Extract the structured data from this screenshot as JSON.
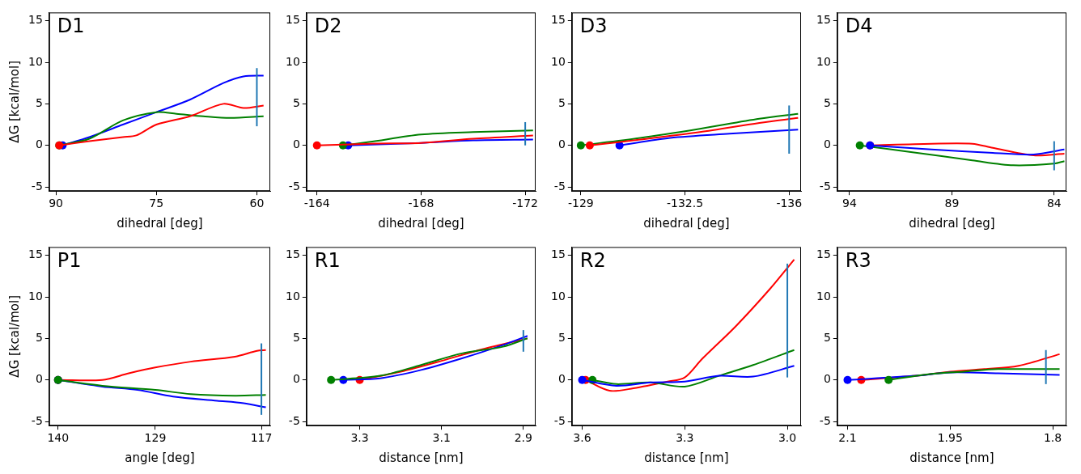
{
  "chart_data": [
    {
      "type": "line",
      "title": "D1",
      "x_label": "dihedral [deg]",
      "y_label": "ΔG [kcal/mol]",
      "xlim": [
        91,
        58
      ],
      "xticks": [
        90,
        75,
        60
      ],
      "ylim": [
        -5.5,
        16
      ],
      "yticks": [
        -5,
        0,
        5,
        10,
        15
      ],
      "grid": false,
      "series": [
        {
          "color": "#ff0000",
          "marker": "circle",
          "x": [
            89.5,
            85,
            80,
            78,
            75,
            70,
            65,
            62,
            59
          ],
          "values": [
            0,
            0.5,
            1.0,
            1.2,
            2.5,
            3.5,
            5.0,
            4.5,
            4.8
          ]
        },
        {
          "color": "#008000",
          "marker": "circle",
          "x": [
            89.5,
            85,
            80,
            75,
            72,
            68,
            64,
            59
          ],
          "values": [
            0,
            0.8,
            3.0,
            4.0,
            3.8,
            3.5,
            3.3,
            3.5
          ]
        },
        {
          "color": "#0000ff",
          "marker": "circle",
          "x": [
            89,
            85,
            80,
            75,
            70,
            65,
            62,
            59
          ],
          "values": [
            0,
            1.0,
            2.5,
            4.0,
            5.5,
            7.5,
            8.3,
            8.4
          ]
        }
      ],
      "error_bar": {
        "x": 60,
        "low": 2.3,
        "high": 9.3,
        "color": "#1f77b4"
      }
    },
    {
      "type": "line",
      "title": "D2",
      "x_label": "dihedral [deg]",
      "xlim": [
        -163.6,
        -172.4
      ],
      "xticks": [
        -164,
        -168,
        -172
      ],
      "ylim": [
        -5.5,
        16
      ],
      "yticks": [
        -5,
        0,
        5,
        10,
        15
      ],
      "grid": false,
      "series": [
        {
          "color": "#ff0000",
          "marker": "circle",
          "x": [
            -164,
            -166,
            -168,
            -170,
            -172.3
          ],
          "values": [
            0,
            0.2,
            0.3,
            0.8,
            1.2
          ]
        },
        {
          "color": "#008000",
          "marker": "circle",
          "x": [
            -165,
            -166,
            -168,
            -170,
            -172.3
          ],
          "values": [
            0,
            0.4,
            1.3,
            1.6,
            1.8
          ]
        },
        {
          "color": "#0000ff",
          "marker": "circle",
          "x": [
            -165.2,
            -168,
            -170,
            -172.3
          ],
          "values": [
            0,
            0.3,
            0.6,
            0.7
          ]
        }
      ],
      "error_bar": {
        "x": -172,
        "low": 0,
        "high": 2.8,
        "color": "#1f77b4"
      }
    },
    {
      "type": "line",
      "title": "D3",
      "x_label": "dihedral [deg]",
      "xlim": [
        -128.7,
        -136.4
      ],
      "xticks": [
        -129,
        -132.5,
        -136
      ],
      "ylim": [
        -5.5,
        16
      ],
      "yticks": [
        -5,
        0,
        5,
        10,
        15
      ],
      "grid": false,
      "series": [
        {
          "color": "#ff0000",
          "marker": "circle",
          "x": [
            -129.3,
            -131,
            -133,
            -135,
            -136.3
          ],
          "values": [
            0,
            0.7,
            1.6,
            2.7,
            3.3
          ]
        },
        {
          "color": "#008000",
          "marker": "circle",
          "x": [
            -129,
            -131,
            -133,
            -135,
            -136.3
          ],
          "values": [
            0,
            0.9,
            2.0,
            3.2,
            3.8
          ]
        },
        {
          "color": "#0000ff",
          "marker": "circle",
          "x": [
            -130.3,
            -132,
            -134,
            -136.3
          ],
          "values": [
            0,
            0.9,
            1.4,
            1.9
          ]
        }
      ],
      "error_bar": {
        "x": -136,
        "low": -1,
        "high": 4.8,
        "color": "#1f77b4"
      }
    },
    {
      "type": "line",
      "title": "D4",
      "x_label": "dihedral [deg]",
      "xlim": [
        94.6,
        83.4
      ],
      "xticks": [
        94,
        89,
        84
      ],
      "ylim": [
        -5.5,
        16
      ],
      "yticks": [
        -5,
        0,
        5,
        10,
        15
      ],
      "grid": false,
      "series": [
        {
          "color": "#0000ff",
          "marker": "circle",
          "x": [
            93,
            90,
            87,
            85,
            83.5
          ],
          "values": [
            0,
            -0.5,
            -0.9,
            -1.1,
            -0.5
          ]
        },
        {
          "color": "#008000",
          "marker": "circle",
          "x": [
            93.5,
            91,
            88,
            86,
            84,
            83.5
          ],
          "values": [
            0,
            -0.8,
            -1.8,
            -2.4,
            -2.2,
            -1.9
          ]
        },
        {
          "color": "#ff0000",
          "marker": "circle",
          "x": [
            93,
            90,
            88,
            87,
            85,
            83.5
          ],
          "values": [
            0,
            0.2,
            0.2,
            -0.3,
            -1.2,
            -1.0
          ]
        }
      ],
      "error_bar": {
        "x": 84,
        "low": -3,
        "high": 0.5,
        "color": "#1f77b4"
      }
    },
    {
      "type": "line",
      "title": "P1",
      "x_label": "angle [deg]",
      "y_label": "ΔG [kcal/mol]",
      "xlim": [
        141,
        116
      ],
      "xticks": [
        140,
        129,
        117
      ],
      "ylim": [
        -5.5,
        16
      ],
      "yticks": [
        -5,
        0,
        5,
        10,
        15
      ],
      "grid": false,
      "series": [
        {
          "color": "#008000",
          "marker": "circle",
          "x": [
            140,
            135,
            129,
            125,
            120,
            116.5
          ],
          "values": [
            0,
            -0.7,
            -1.2,
            -1.7,
            -1.9,
            -1.8
          ]
        },
        {
          "color": "#0000ff",
          "marker": "circle",
          "x": [
            140,
            135,
            131,
            127,
            122,
            119,
            116.5
          ],
          "values": [
            0,
            -0.8,
            -1.2,
            -2.0,
            -2.5,
            -2.8,
            -3.3
          ]
        },
        {
          "color": "#ff0000",
          "marker": "circle",
          "x": [
            140,
            135,
            132,
            129,
            125,
            120,
            117.5,
            116.5
          ],
          "values": [
            0,
            0,
            0.8,
            1.5,
            2.2,
            2.8,
            3.5,
            3.6
          ]
        }
      ],
      "error_bar": {
        "x": 117,
        "low": -4.2,
        "high": 4.4,
        "color": "#1f77b4"
      }
    },
    {
      "type": "line",
      "title": "R1",
      "x_label": "distance [nm]",
      "xlim": [
        3.43,
        2.87
      ],
      "xticks": [
        3.3,
        3.1,
        2.9
      ],
      "ylim": [
        -5.5,
        16
      ],
      "yticks": [
        -5,
        0,
        5,
        10,
        15
      ],
      "grid": false,
      "series": [
        {
          "color": "#008000",
          "marker": "circle",
          "x": [
            3.37,
            3.25,
            3.15,
            3.05,
            2.95,
            2.89
          ],
          "values": [
            0,
            0.5,
            1.8,
            3.2,
            4.0,
            5.0
          ]
        },
        {
          "color": "#0000ff",
          "marker": "circle",
          "x": [
            3.34,
            3.25,
            3.15,
            3.05,
            2.95,
            2.89
          ],
          "values": [
            0,
            0.2,
            1.2,
            2.6,
            4.2,
            5.3
          ]
        },
        {
          "color": "#ff0000",
          "marker": "circle",
          "x": [
            3.3,
            3.2,
            3.1,
            3.0,
            2.89
          ],
          "values": [
            0,
            1.0,
            2.3,
            3.7,
            5.0
          ]
        }
      ],
      "error_bar": {
        "x": 2.9,
        "low": 3.4,
        "high": 6,
        "color": "#1f77b4"
      }
    },
    {
      "type": "line",
      "title": "R2",
      "x_label": "distance [nm]",
      "xlim": [
        3.63,
        2.96
      ],
      "xticks": [
        3.6,
        3.3,
        {
          "value": 3,
          "label": "3.0"
        }
      ],
      "ylim": [
        -5.5,
        16
      ],
      "yticks": [
        -5,
        0,
        5,
        10,
        15
      ],
      "grid": false,
      "series": [
        {
          "color": "#0000ff",
          "marker": "circle",
          "x": [
            3.6,
            3.5,
            3.4,
            3.3,
            3.2,
            3.1,
            2.98
          ],
          "values": [
            0,
            -0.7,
            -0.3,
            -0.2,
            0.5,
            0.4,
            1.7
          ]
        },
        {
          "color": "#008000",
          "marker": "circle",
          "x": [
            3.57,
            3.5,
            3.4,
            3.3,
            3.2,
            3.1,
            2.98
          ],
          "values": [
            0,
            -0.5,
            -0.3,
            -0.8,
            0.5,
            1.8,
            3.6
          ]
        },
        {
          "color": "#ff0000",
          "marker": "circle",
          "x": [
            3.59,
            3.52,
            3.45,
            3.35,
            3.3,
            3.25,
            3.15,
            3.05,
            2.98
          ],
          "values": [
            0,
            -1.3,
            -1.0,
            -0.2,
            0.3,
            2.5,
            6.5,
            11.0,
            14.5
          ]
        }
      ],
      "error_bar": {
        "x": 3.0,
        "low": 0.3,
        "high": 14,
        "color": "#1f77b4"
      }
    },
    {
      "type": "line",
      "title": "R3",
      "x_label": "distance [nm]",
      "xlim": [
        2.115,
        1.78
      ],
      "xticks": [
        2.1,
        1.95,
        1.8
      ],
      "ylim": [
        -5.5,
        16
      ],
      "yticks": [
        -5,
        0,
        5,
        10,
        15
      ],
      "grid": false,
      "series": [
        {
          "color": "#008000",
          "marker": "circle",
          "x": [
            2.04,
            1.98,
            1.93,
            1.88,
            1.79
          ],
          "values": [
            0,
            0.7,
            1.0,
            1.3,
            1.3
          ]
        },
        {
          "color": "#0000ff",
          "marker": "circle",
          "x": [
            2.1,
            2.0,
            1.95,
            1.88,
            1.79
          ],
          "values": [
            0,
            0.5,
            0.9,
            0.8,
            0.6
          ]
        },
        {
          "color": "#ff0000",
          "marker": "circle",
          "x": [
            2.08,
            2.0,
            1.95,
            1.9,
            1.85,
            1.79
          ],
          "values": [
            0,
            0.5,
            1.0,
            1.3,
            1.7,
            3.1
          ]
        }
      ],
      "error_bar": {
        "x": 1.81,
        "low": -0.5,
        "high": 3.6,
        "color": "#1f77b4"
      }
    }
  ]
}
